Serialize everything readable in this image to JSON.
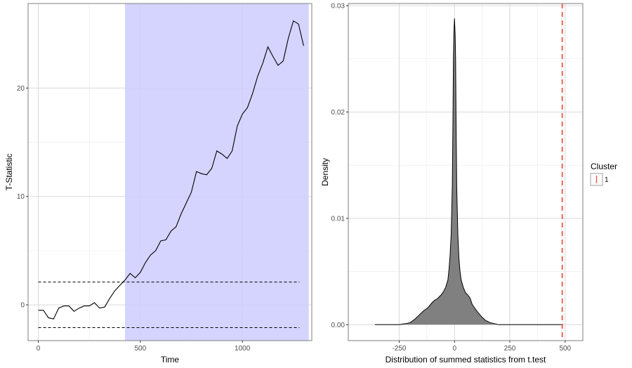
{
  "chart_data": [
    {
      "type": "line",
      "xlabel": "Time",
      "ylabel": "T-Statistic",
      "xlim": [
        -50,
        1340
      ],
      "ylim": [
        -3.3,
        27.8
      ],
      "x_ticks": [
        0,
        500,
        1000
      ],
      "y_ticks": [
        0,
        10,
        20
      ],
      "grid": true,
      "shaded_region": {
        "x": [
          425,
          1325
        ],
        "color": "#ccccff"
      },
      "threshold_lines": [
        2.1,
        -2.1
      ],
      "series": [
        {
          "x": [
            0,
            25,
            50,
            75,
            100,
            125,
            150,
            175,
            200,
            225,
            250,
            275,
            300,
            325,
            350,
            375,
            400,
            425,
            450,
            475,
            500,
            525,
            550,
            575,
            600,
            625,
            650,
            675,
            700,
            725,
            750,
            775,
            800,
            825,
            850,
            875,
            900,
            925,
            950,
            975,
            1000,
            1025,
            1050,
            1075,
            1100,
            1125,
            1150,
            1175,
            1200,
            1225,
            1250,
            1275,
            1300
          ],
          "y": [
            -0.5,
            -0.5,
            -1.2,
            -1.3,
            -0.3,
            -0.1,
            -0.1,
            -0.6,
            -0.3,
            -0.1,
            -0.1,
            0.2,
            -0.3,
            -0.2,
            0.6,
            1.3,
            1.8,
            2.3,
            2.9,
            2.5,
            3.0,
            3.9,
            4.6,
            5.0,
            5.9,
            6.0,
            6.8,
            7.2,
            8.4,
            9.4,
            10.4,
            12.3,
            12.1,
            12.0,
            12.6,
            14.2,
            13.9,
            13.5,
            14.2,
            16.5,
            17.6,
            18.2,
            19.5,
            21.1,
            22.3,
            23.8,
            22.9,
            22.1,
            22.5,
            24.6,
            26.2,
            25.9,
            23.9
          ]
        }
      ]
    },
    {
      "type": "area",
      "xlabel": "Distribution of summed statistics from t.test",
      "ylabel": "Density",
      "xlim": [
        -480,
        580
      ],
      "ylim": [
        -0.0015,
        0.0302
      ],
      "x_ticks": [
        -250,
        0,
        250,
        500
      ],
      "y_ticks": [
        0,
        0.01,
        0.02,
        0.03
      ],
      "y_tick_labels": [
        "0.00",
        "0.01",
        "0.02",
        "0.03"
      ],
      "grid": true,
      "fill_color": "#808080",
      "vline": {
        "x": 487,
        "color": "#e8645a",
        "style": "dashed"
      },
      "x": [
        -360,
        -250,
        -220,
        -200,
        -180,
        -160,
        -140,
        -120,
        -100,
        -90,
        -80,
        -70,
        -60,
        -50,
        -40,
        -30,
        -25,
        -20,
        -15,
        -10,
        -7,
        -5,
        -3,
        0,
        3,
        5,
        7,
        10,
        15,
        20,
        25,
        30,
        40,
        50,
        60,
        70,
        80,
        90,
        100,
        120,
        140,
        160,
        180,
        200,
        240,
        300,
        400,
        490
      ],
      "y": [
        0,
        0,
        0.0001,
        0.0002,
        0.0005,
        0.0009,
        0.0013,
        0.0016,
        0.0021,
        0.0023,
        0.0024,
        0.0026,
        0.0028,
        0.0031,
        0.0035,
        0.0042,
        0.0052,
        0.0065,
        0.0085,
        0.013,
        0.019,
        0.025,
        0.0272,
        0.0288,
        0.0272,
        0.025,
        0.019,
        0.013,
        0.0085,
        0.0063,
        0.005,
        0.0042,
        0.0035,
        0.003,
        0.0028,
        0.0025,
        0.0019,
        0.0016,
        0.0013,
        0.0008,
        0.0004,
        0.0002,
        0.0001,
        0,
        0,
        0,
        0,
        0
      ],
      "legend": {
        "title": "Cluster",
        "entries": [
          "1"
        ],
        "position": "right",
        "color": "#e8645a"
      }
    }
  ]
}
